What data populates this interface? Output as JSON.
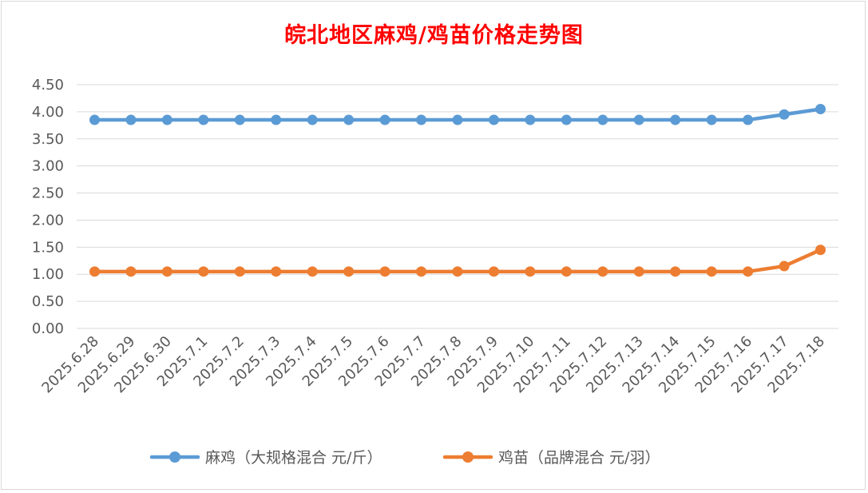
{
  "chart_data": {
    "type": "line",
    "title": "皖北地区麻鸡/鸡苗价格走势图",
    "xlabel": "",
    "ylabel": "",
    "ylim": [
      0,
      4.5
    ],
    "y_ticks": [
      "0.00",
      "0.50",
      "1.00",
      "1.50",
      "2.00",
      "2.50",
      "3.00",
      "3.50",
      "4.00",
      "4.50"
    ],
    "grid": "horizontal",
    "legend_position": "bottom",
    "categories": [
      "2025.6.28",
      "2025.6.29",
      "2025.6.30",
      "2025.7.1",
      "2025.7.2",
      "2025.7.3",
      "2025.7.4",
      "2025.7.5",
      "2025.7.6",
      "2025.7.7",
      "2025.7.8",
      "2025.7.9",
      "2025.7.10",
      "2025.7.11",
      "2025.7.12",
      "2025.7.13",
      "2025.7.14",
      "2025.7.15",
      "2025.7.16",
      "2025.7.17",
      "2025.7.18"
    ],
    "series": [
      {
        "name": "麻鸡（大规格混合 元/斤）",
        "color": "#5b9bd5",
        "values": [
          3.85,
          3.85,
          3.85,
          3.85,
          3.85,
          3.85,
          3.85,
          3.85,
          3.85,
          3.85,
          3.85,
          3.85,
          3.85,
          3.85,
          3.85,
          3.85,
          3.85,
          3.85,
          3.85,
          3.95,
          4.05
        ]
      },
      {
        "name": "鸡苗（品牌混合 元/羽）",
        "color": "#ed7d31",
        "values": [
          1.05,
          1.05,
          1.05,
          1.05,
          1.05,
          1.05,
          1.05,
          1.05,
          1.05,
          1.05,
          1.05,
          1.05,
          1.05,
          1.05,
          1.05,
          1.05,
          1.05,
          1.05,
          1.05,
          1.15,
          1.45
        ]
      }
    ]
  }
}
